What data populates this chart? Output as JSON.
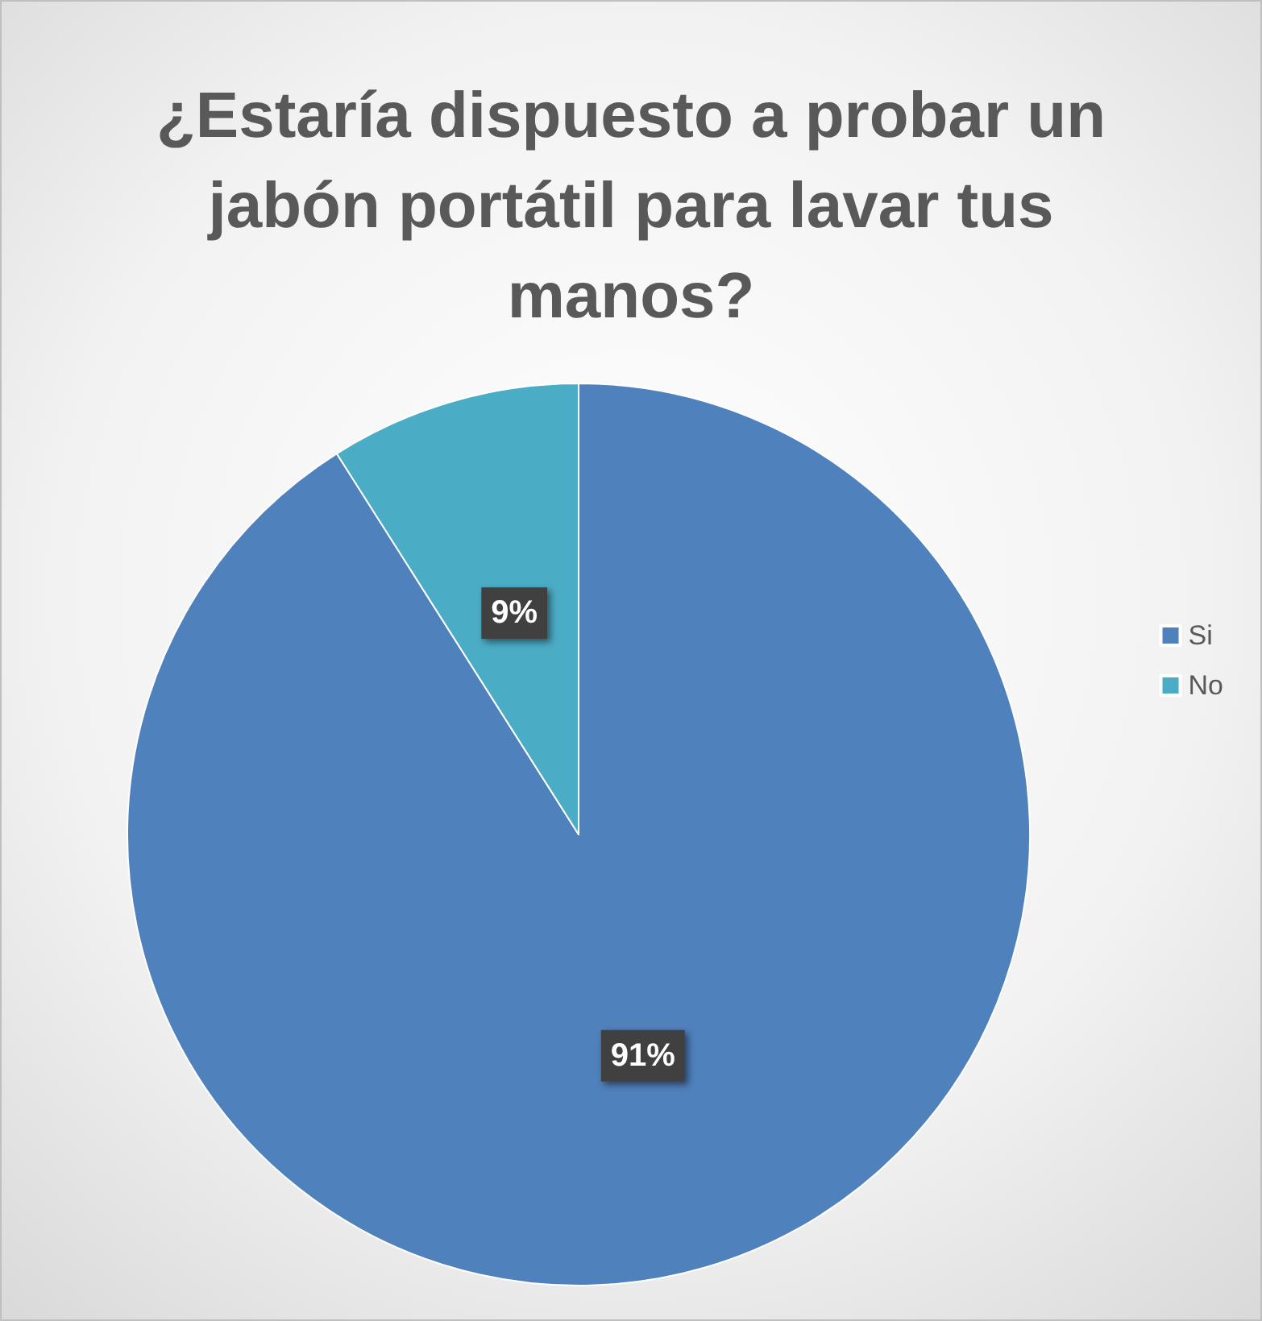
{
  "chart_data": {
    "type": "pie",
    "title": "¿Estaría dispuesto a probar un jabón portátil para lavar tus manos?",
    "categories": [
      "Si",
      "No"
    ],
    "values": [
      91,
      9
    ],
    "colors": [
      "#4f81bd",
      "#4bacc6"
    ],
    "value_labels": [
      "91%",
      "9%"
    ],
    "legend": "right"
  }
}
